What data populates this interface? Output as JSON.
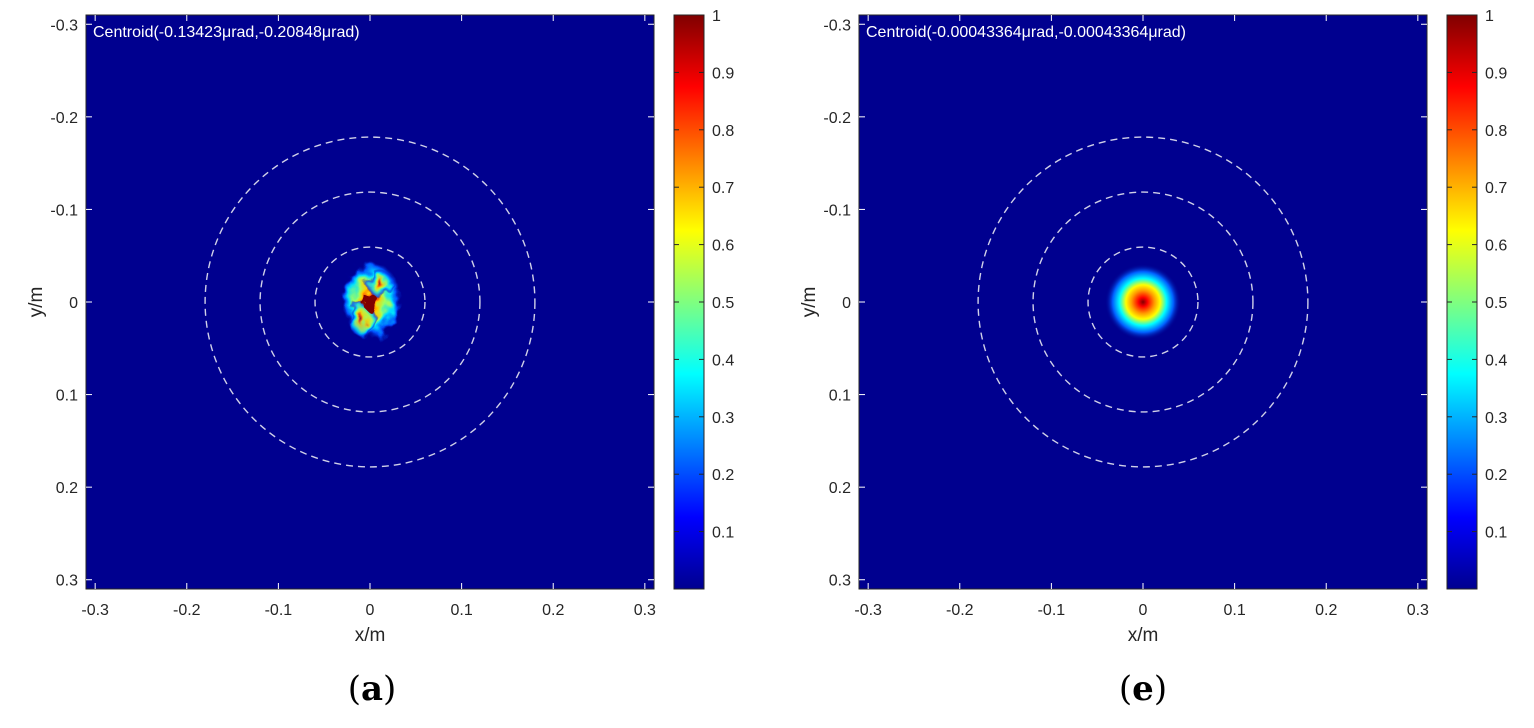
{
  "chart_data": [
    {
      "type": "heatmap",
      "panel_label_open": "(",
      "panel_label_letter": "a",
      "panel_label_close": ")",
      "annotation": "Centroid(-0.13423μrad,-0.20848μrad)",
      "xlabel": "x/m",
      "ylabel": "y/m",
      "xlim": [
        -0.31,
        0.31
      ],
      "ylim": [
        -0.31,
        0.31
      ],
      "y_axis_direction": "reversed",
      "x_ticks": [
        "-0.3",
        "-0.2",
        "-0.1",
        "0",
        "0.1",
        "0.2",
        "0.3"
      ],
      "x_tick_values": [
        -0.3,
        -0.2,
        -0.1,
        0,
        0.1,
        0.2,
        0.3
      ],
      "y_ticks": [
        "-0.3",
        "-0.2",
        "-0.1",
        "0",
        "0.1",
        "0.2",
        "0.3"
      ],
      "y_tick_values": [
        -0.3,
        -0.2,
        -0.1,
        0,
        0.1,
        0.2,
        0.3
      ],
      "colorbar": {
        "colormap": "jet",
        "range": [
          0,
          1
        ],
        "ticks": [
          "0.1",
          "0.2",
          "0.3",
          "0.4",
          "0.5",
          "0.6",
          "0.7",
          "0.8",
          "0.9",
          "1"
        ],
        "tick_values": [
          0.1,
          0.2,
          0.3,
          0.4,
          0.5,
          0.6,
          0.7,
          0.8,
          0.9,
          1.0
        ]
      },
      "circles": {
        "center": [
          0,
          0
        ],
        "radii": [
          0.06,
          0.12,
          0.18
        ],
        "style": "dashed",
        "color": "#d0d0e8"
      },
      "spot": {
        "center": [
          0.0,
          0.0
        ],
        "peak": 1.0,
        "shape": "irregular speckled"
      },
      "grid": false
    },
    {
      "type": "heatmap",
      "panel_label_open": "(",
      "panel_label_letter": "e",
      "panel_label_close": ")",
      "annotation": "Centroid(-0.00043364μrad,-0.00043364μrad)",
      "xlabel": "x/m",
      "ylabel": "y/m",
      "xlim": [
        -0.31,
        0.31
      ],
      "ylim": [
        -0.31,
        0.31
      ],
      "y_axis_direction": "reversed",
      "x_ticks": [
        "-0.3",
        "-0.2",
        "-0.1",
        "0",
        "0.1",
        "0.2",
        "0.3"
      ],
      "x_tick_values": [
        -0.3,
        -0.2,
        -0.1,
        0,
        0.1,
        0.2,
        0.3
      ],
      "y_ticks": [
        "-0.3",
        "-0.2",
        "-0.1",
        "0",
        "0.1",
        "0.2",
        "0.3"
      ],
      "y_tick_values": [
        -0.3,
        -0.2,
        -0.1,
        0,
        0.1,
        0.2,
        0.3
      ],
      "colorbar": {
        "colormap": "jet",
        "range": [
          0,
          1
        ],
        "ticks": [
          "0.1",
          "0.2",
          "0.3",
          "0.4",
          "0.5",
          "0.6",
          "0.7",
          "0.8",
          "0.9",
          "1"
        ],
        "tick_values": [
          0.1,
          0.2,
          0.3,
          0.4,
          0.5,
          0.6,
          0.7,
          0.8,
          0.9,
          1.0
        ]
      },
      "circles": {
        "center": [
          0,
          0
        ],
        "radii": [
          0.06,
          0.12,
          0.18
        ],
        "style": "dashed",
        "color": "#d0d0e8"
      },
      "spot": {
        "center": [
          0.0,
          0.0
        ],
        "peak": 1.0,
        "shape": "smooth symmetric"
      },
      "grid": false
    }
  ]
}
